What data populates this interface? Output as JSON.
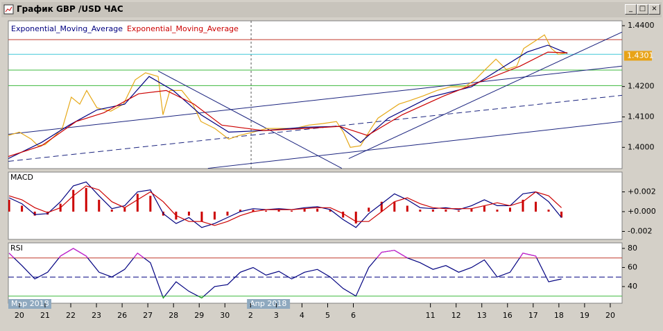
{
  "window": {
    "title": "График GBP /USD ЧАС"
  },
  "chart_data": [
    {
      "type": "line",
      "xlim": [
        -0.43,
        23.46
      ],
      "ylim": [
        1.393,
        1.4416
      ],
      "yticks": [
        {
          "value": 1.4,
          "label": "1.4000"
        },
        {
          "value": 1.41,
          "label": "1.4100"
        },
        {
          "value": 1.42,
          "label": "1.4200"
        },
        {
          "value": 1.44,
          "label": "1.4400"
        }
      ],
      "current_price": {
        "value": 1.4301,
        "label": "1.4301",
        "color": "#e8a317"
      },
      "separators": [
        9.02
      ],
      "levels": [
        {
          "value": 1.4354,
          "color": "#c0392b"
        },
        {
          "value": 1.4306,
          "color": "#40c8d8"
        },
        {
          "value": 1.4254,
          "color": "#3cb83c"
        },
        {
          "value": 1.4203,
          "color": "#3cb83c"
        }
      ],
      "trendlines": [
        {
          "x": [
            -0.43,
            23.46
          ],
          "values": [
            1.4043,
            1.4267
          ],
          "color": "#1a237e",
          "dashed": false
        },
        {
          "x": [
            -0.43,
            23.46
          ],
          "values": [
            1.3954,
            1.4171
          ],
          "color": "#1a237e",
          "dashed": true
        },
        {
          "x": [
            7.34,
            23.46
          ],
          "values": [
            1.3931,
            1.4085
          ],
          "color": "#1a237e",
          "dashed": false
        },
        {
          "x": [
            5.4,
            12.55
          ],
          "values": [
            1.4251,
            1.3931
          ],
          "color": "#1a237e",
          "dashed": false
        },
        {
          "x": [
            12.82,
            23.46
          ],
          "values": [
            1.3963,
            1.4379
          ],
          "color": "#1a237e",
          "dashed": false
        }
      ],
      "series": [
        {
          "color": "#e6a817",
          "x": [
            -0.43,
            0,
            0.46,
            0.73,
            1.0,
            1.4,
            1.67,
            2.02,
            2.35,
            2.62,
            3.02,
            3.56,
            4.05,
            4.51,
            4.91,
            5.4,
            5.59,
            5.86,
            6.32,
            6.75,
            7.07,
            7.61,
            8.15,
            8.56,
            9.1,
            9.64,
            10.18,
            10.72,
            11.26,
            11.8,
            12.34,
            12.61,
            12.88,
            13.28,
            13.69,
            13.96,
            14.36,
            14.77,
            15.17,
            15.71,
            16.25,
            16.79,
            17.33,
            17.74,
            18.14,
            18.55,
            18.95,
            19.36,
            19.63,
            20.03,
            20.44,
            20.71,
            20.98,
            21.33
          ],
          "values": [
            1.4039,
            1.405,
            1.4027,
            1.4005,
            1.4009,
            1.4039,
            1.4062,
            1.4165,
            1.4142,
            1.4187,
            1.413,
            1.4119,
            1.4142,
            1.4222,
            1.4245,
            1.4233,
            1.4107,
            1.4187,
            1.4187,
            1.4142,
            1.4085,
            1.4062,
            1.4027,
            1.4039,
            1.405,
            1.4062,
            1.4062,
            1.4062,
            1.4073,
            1.4078,
            1.4085,
            1.405,
            1.4,
            1.4005,
            1.4062,
            1.4096,
            1.4119,
            1.4142,
            1.4153,
            1.4169,
            1.4187,
            1.4199,
            1.4199,
            1.4222,
            1.4256,
            1.429,
            1.4256,
            1.4267,
            1.4325,
            1.4347,
            1.437,
            1.4325,
            1.4306,
            1.4311
          ]
        },
        {
          "name": "Exponential_Moving_Average",
          "color": "#000080",
          "x": [
            -0.43,
            0.86,
            1.94,
            3.02,
            4.1,
            5.05,
            5.99,
            7.07,
            8.15,
            9.5,
            11.12,
            12.47,
            13.28,
            14.36,
            15.98,
            17.6,
            18.68,
            19.76,
            20.57,
            21.33
          ],
          "values": [
            1.3963,
            1.4016,
            1.4073,
            1.4123,
            1.4142,
            1.4233,
            1.4187,
            1.4107,
            1.405,
            1.4055,
            1.4066,
            1.4069,
            1.4016,
            1.4096,
            1.4165,
            1.4199,
            1.4256,
            1.4313,
            1.4336,
            1.4309
          ]
        },
        {
          "name": "Exponential_Moving_Average",
          "color": "#cc0000",
          "x": [
            -0.43,
            0.86,
            2.21,
            3.29,
            4.64,
            5.72,
            6.8,
            7.88,
            9.5,
            11.12,
            12.47,
            13.55,
            14.9,
            16.52,
            18.14,
            19.49,
            20.57,
            21.33
          ],
          "values": [
            1.397,
            1.4005,
            1.4085,
            1.4114,
            1.4176,
            1.4187,
            1.4142,
            1.4073,
            1.4055,
            1.4062,
            1.4069,
            1.4039,
            1.4107,
            1.4169,
            1.4222,
            1.4267,
            1.4313,
            1.4311
          ]
        }
      ]
    },
    {
      "type": "line",
      "title": "MACD",
      "xlim": [
        -0.43,
        23.46
      ],
      "ylim": [
        -0.00281,
        0.004
      ],
      "yticks": [
        {
          "value": 0.002,
          "label": "+0.002"
        },
        {
          "value": 0,
          "label": "+0.000"
        },
        {
          "value": -0.002,
          "label": "-0.002"
        }
      ],
      "series": [
        {
          "type": "bar",
          "color": "#cc0000",
          "x": [
            -0.4,
            0.1,
            0.6,
            1.1,
            1.6,
            2.1,
            2.6,
            3.1,
            3.6,
            4.1,
            4.6,
            5.1,
            5.6,
            6.1,
            6.6,
            7.1,
            7.6,
            8.1,
            8.6,
            9.1,
            9.6,
            10.1,
            10.6,
            11.1,
            11.6,
            12.1,
            12.6,
            13.1,
            13.6,
            14.1,
            14.6,
            15.1,
            15.6,
            16.1,
            16.6,
            17.1,
            17.6,
            18.1,
            18.6,
            19.1,
            19.6,
            20.1,
            20.6,
            21.1
          ],
          "values": [
            0.0012,
            0.0006,
            -0.0004,
            -0.0003,
            0.0008,
            0.0022,
            0.0024,
            0.0012,
            0.0002,
            0.0004,
            0.0018,
            0.0016,
            -0.0004,
            -0.0008,
            -0.0004,
            -0.001,
            -0.0008,
            -0.0004,
            0.0002,
            0.0002,
            0.0001,
            0.0002,
            0.0001,
            0.0003,
            0.0003,
            0.0002,
            -0.0006,
            -0.0012,
            0.0004,
            0.001,
            0.001,
            0.0006,
            0.0002,
            0.0002,
            0.0002,
            0.0001,
            0.0003,
            0.0006,
            0.0002,
            0.0004,
            0.0012,
            0.001,
            0.0002,
            -0.0006
          ]
        },
        {
          "color": "#000080",
          "x": [
            -0.4,
            0.1,
            0.6,
            1.1,
            1.6,
            2.1,
            2.6,
            3.1,
            3.6,
            4.1,
            4.6,
            5.1,
            5.6,
            6.1,
            6.6,
            7.1,
            7.6,
            8.1,
            8.6,
            9.1,
            9.6,
            10.1,
            10.6,
            11.1,
            11.6,
            12.1,
            12.6,
            13.1,
            13.6,
            14.1,
            14.6,
            15.1,
            15.6,
            16.1,
            16.6,
            17.1,
            17.6,
            18.1,
            18.6,
            19.1,
            19.6,
            20.1,
            20.6,
            21.1
          ],
          "values": [
            0.0014,
            0.0008,
            -0.0003,
            -0.0002,
            0.001,
            0.0026,
            0.003,
            0.0016,
            0.0003,
            0.0006,
            0.002,
            0.0022,
            -0.0002,
            -0.0012,
            -0.0006,
            -0.0016,
            -0.0012,
            -0.0006,
            0,
            0.0003,
            0.0002,
            0.0003,
            0.0002,
            0.0004,
            0.0005,
            0.0002,
            -0.0008,
            -0.0016,
            -0.0002,
            0.0008,
            0.0018,
            0.0012,
            0.0004,
            0.0003,
            0.0004,
            0.0002,
            0.0006,
            0.0012,
            0.0006,
            0.0006,
            0.0018,
            0.002,
            0.001,
            -0.0006
          ]
        },
        {
          "color": "#cc0000",
          "x": [
            -0.4,
            0.1,
            0.6,
            1.1,
            1.6,
            2.1,
            2.6,
            3.1,
            3.6,
            4.1,
            4.6,
            5.1,
            5.6,
            6.1,
            6.6,
            7.1,
            7.6,
            8.1,
            8.6,
            9.1,
            9.6,
            10.1,
            10.6,
            11.1,
            11.6,
            12.1,
            12.6,
            13.1,
            13.6,
            14.1,
            14.6,
            15.1,
            15.6,
            16.1,
            16.6,
            17.1,
            17.6,
            18.1,
            18.6,
            19.1,
            19.6,
            20.1,
            20.6,
            21.1
          ],
          "values": [
            0.0016,
            0.0012,
            0.0004,
            -0.0001,
            0.0004,
            0.0016,
            0.0026,
            0.0022,
            0.001,
            0.0004,
            0.0012,
            0.002,
            0.001,
            -0.0004,
            -0.001,
            -0.001,
            -0.0014,
            -0.001,
            -0.0004,
            0,
            0.0002,
            0.0002,
            0.0002,
            0.0003,
            0.0004,
            0.0004,
            -0.0002,
            -0.001,
            -0.001,
            0,
            0.001,
            0.0014,
            0.0008,
            0.0004,
            0.0003,
            0.0003,
            0.0003,
            0.0006,
            0.0009,
            0.0006,
            0.001,
            0.002,
            0.0016,
            0.0004
          ]
        }
      ]
    },
    {
      "type": "line",
      "title": "RSI",
      "xlim": [
        -0.43,
        23.46
      ],
      "ylim": [
        22.5,
        85.8
      ],
      "yticks": [
        40,
        60,
        80
      ],
      "levels": [
        {
          "value": 70,
          "color": "#c0392b",
          "dashed": false
        },
        {
          "value": 50,
          "color": "#000080",
          "dashed": true
        },
        {
          "value": 30,
          "color": "#3cb83c",
          "dashed": false
        }
      ],
      "period_labels": [
        {
          "value": -0.43,
          "label": "Мар 2018"
        },
        {
          "value": 8.86,
          "label": "Апр 2018"
        }
      ],
      "xticks": [
        {
          "value": 0,
          "label": "20"
        },
        {
          "value": 1,
          "label": "21"
        },
        {
          "value": 2,
          "label": "22"
        },
        {
          "value": 3,
          "label": "23"
        },
        {
          "value": 4,
          "label": "26"
        },
        {
          "value": 5,
          "label": "27"
        },
        {
          "value": 6,
          "label": "28"
        },
        {
          "value": 7,
          "label": "29"
        },
        {
          "value": 8,
          "label": "30"
        },
        {
          "value": 9,
          "label": "2"
        },
        {
          "value": 10,
          "label": "3"
        },
        {
          "value": 11,
          "label": "4"
        },
        {
          "value": 12,
          "label": "5"
        },
        {
          "value": 13,
          "label": "6"
        },
        {
          "value": 16,
          "label": "11"
        },
        {
          "value": 17,
          "label": "12"
        },
        {
          "value": 18,
          "label": "13"
        },
        {
          "value": 19,
          "label": "16"
        },
        {
          "value": 20,
          "label": "17"
        },
        {
          "value": 21,
          "label": "18"
        },
        {
          "value": 22,
          "label": "19"
        },
        {
          "value": 23,
          "label": "20"
        }
      ],
      "series": [
        {
          "color": "#000080",
          "above": {
            "level": 70,
            "color": "#d020d0"
          },
          "below": {
            "level": 30,
            "color": "#22aa22"
          },
          "x": [
            -0.4,
            0.1,
            0.6,
            1.1,
            1.6,
            2.1,
            2.6,
            3.1,
            3.6,
            4.1,
            4.6,
            5.1,
            5.6,
            6.1,
            6.6,
            7.1,
            7.6,
            8.1,
            8.6,
            9.1,
            9.6,
            10.1,
            10.6,
            11.1,
            11.6,
            12.1,
            12.6,
            13.1,
            13.6,
            14.1,
            14.6,
            15.1,
            15.6,
            16.1,
            16.6,
            17.1,
            17.6,
            18.1,
            18.6,
            19.1,
            19.6,
            20.1,
            20.6,
            21.1
          ],
          "values": [
            75,
            62,
            48,
            55,
            72,
            80,
            72,
            55,
            50,
            58,
            75,
            65,
            28,
            45,
            35,
            28,
            40,
            42,
            55,
            60,
            52,
            56,
            48,
            55,
            58,
            50,
            38,
            30,
            60,
            76,
            78,
            70,
            65,
            58,
            62,
            55,
            60,
            68,
            50,
            55,
            75,
            72,
            45,
            48
          ]
        }
      ]
    }
  ]
}
